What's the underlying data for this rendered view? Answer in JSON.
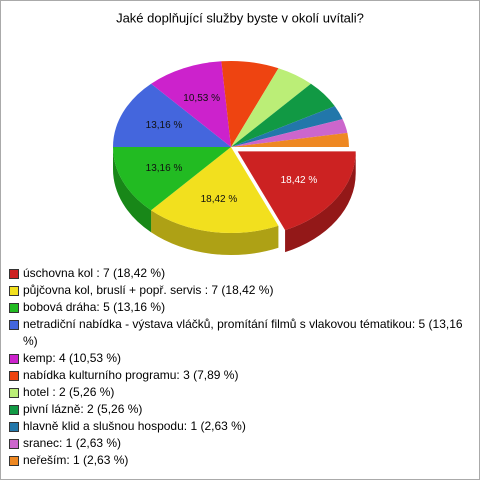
{
  "chart_data": {
    "type": "pie",
    "title": "Jaké doplňující služby byste v okolí uvítali?",
    "categories": [
      "úschovna kol : 7 (18,42 %)",
      "půjčovna kol, bruslí + popř. servis : 7 (18,42 %)",
      "bobová dráha: 5 (13,16 %)",
      "netradiční nabídka - výstava vláčků, promítání filmů s vlakovou tématikou: 5 (13,16 %)",
      "kemp: 4 (10,53 %)",
      "nabídka kulturního programu: 3 (7,89 %)",
      "hotel : 2 (5,26 %)",
      "pivní lázně: 2 (5,26 %)",
      "hlavně klid  a slušnou hospodu: 1 (2,63 %)",
      "sranec: 1 (2,63 %)",
      "neřeším: 1 (2,63 %)"
    ],
    "values": [
      18.42,
      18.42,
      13.16,
      13.16,
      10.53,
      7.89,
      5.26,
      5.26,
      2.63,
      2.63,
      2.63
    ],
    "value_labels": [
      "18,42 %",
      "18,42 %",
      "13,16 %",
      "13,16 %",
      "10,53 %",
      null,
      null,
      null,
      null,
      null,
      null
    ],
    "colors": [
      "#cc2222",
      "#f2e01e",
      "#22bb22",
      "#4466dd",
      "#cc22cc",
      "#ee4411",
      "#bbee77",
      "#119944",
      "#2277aa",
      "#cc66cc",
      "#ee8822"
    ],
    "legend": "bottom"
  }
}
